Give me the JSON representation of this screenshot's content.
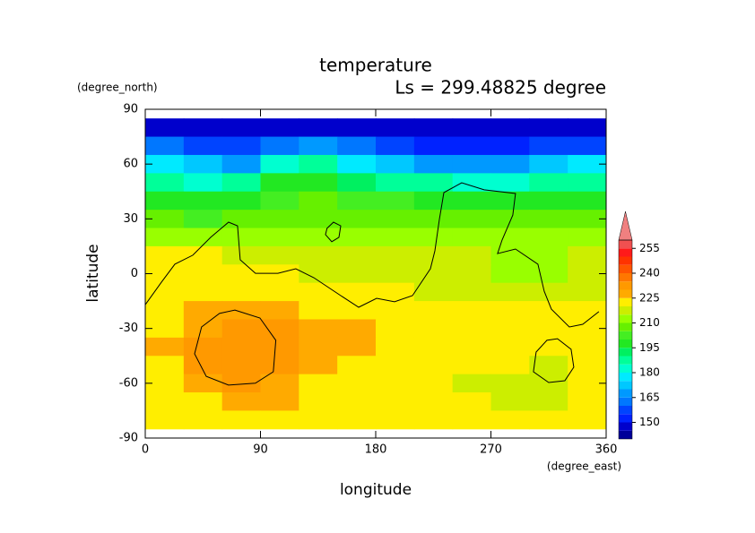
{
  "chart_data": {
    "type": "contour",
    "title": "temperature",
    "subtitle": "Ls = 299.48825 degree",
    "x_label": "longitude",
    "x_unit": "(degree_east)",
    "y_label": "latitude",
    "y_unit": "(degree_north)",
    "xlim": [
      0,
      360
    ],
    "ylim": [
      -90,
      90
    ],
    "xticks": [
      0,
      90,
      180,
      270,
      360
    ],
    "yticks": [
      -90,
      -60,
      -30,
      0,
      30,
      60,
      90
    ],
    "x": [
      15,
      45,
      75,
      105,
      135,
      165,
      195,
      225,
      255,
      285,
      315,
      345
    ],
    "y": [
      80,
      70,
      60,
      50,
      40,
      30,
      20,
      10,
      0,
      -10,
      -20,
      -30,
      -40,
      -50,
      -60,
      -70,
      -80
    ],
    "z": [
      [
        147,
        147,
        147,
        147,
        147,
        147,
        147,
        147,
        147,
        147,
        147,
        147
      ],
      [
        160,
        155,
        158,
        163,
        165,
        160,
        155,
        152,
        152,
        152,
        155,
        158
      ],
      [
        175,
        170,
        168,
        183,
        185,
        178,
        170,
        167,
        167,
        168,
        170,
        175
      ],
      [
        187,
        183,
        185,
        195,
        197,
        192,
        187,
        185,
        183,
        183,
        185,
        187
      ],
      [
        197,
        195,
        198,
        203,
        205,
        203,
        200,
        198,
        197,
        197,
        198,
        198
      ],
      [
        205,
        203,
        205,
        207,
        208,
        207,
        207,
        206,
        205,
        205,
        205,
        205
      ],
      [
        212,
        212,
        210,
        212,
        212,
        213,
        213,
        212,
        212,
        212,
        212,
        212
      ],
      [
        222,
        220,
        218,
        215,
        215,
        216,
        217,
        215,
        215,
        214,
        214,
        216
      ],
      [
        222,
        222,
        222,
        222,
        218,
        217,
        216,
        215,
        215,
        214,
        214,
        217
      ],
      [
        222,
        223,
        223,
        223,
        222,
        222,
        222,
        218,
        216,
        216,
        216,
        218
      ],
      [
        222,
        225,
        228,
        227,
        224,
        223,
        223,
        222,
        220,
        220,
        220,
        222
      ],
      [
        223,
        228,
        230,
        230,
        228,
        225,
        223,
        222,
        222,
        222,
        221,
        223
      ],
      [
        228,
        230,
        231,
        231,
        228,
        226,
        224,
        223,
        222,
        222,
        221,
        223
      ],
      [
        224,
        230,
        231,
        231,
        228,
        224,
        223,
        222,
        222,
        220,
        218,
        222
      ],
      [
        222,
        226,
        230,
        229,
        224,
        222,
        222,
        222,
        218,
        217,
        216,
        220
      ],
      [
        222,
        222,
        228,
        226,
        222,
        222,
        222,
        221,
        220,
        219,
        218,
        221
      ],
      [
        222,
        222,
        222,
        222,
        222,
        222,
        222,
        222,
        222,
        222,
        221,
        222
      ]
    ],
    "levels": [
      140,
      145,
      150,
      155,
      160,
      165,
      170,
      175,
      180,
      185,
      190,
      195,
      200,
      205,
      210,
      215,
      220,
      225,
      230,
      235,
      240,
      245,
      250,
      255,
      260
    ],
    "colors": [
      "#000099",
      "#0000cc",
      "#0022ff",
      "#0044ff",
      "#0077ff",
      "#0099ff",
      "#00c8ff",
      "#00eaff",
      "#00ffd0",
      "#00ff99",
      "#00f060",
      "#22e822",
      "#44ee22",
      "#66f000",
      "#99ff00",
      "#ccee00",
      "#ffee00",
      "#ffaa00",
      "#ff9900",
      "#ff7700",
      "#ff5500",
      "#ff3300",
      "#ff1a1a",
      "#f05050"
    ],
    "extend_color": "#f08080",
    "cbar_ticks": [
      150,
      165,
      180,
      195,
      210,
      225,
      240,
      255
    ],
    "contours": [
      {
        "x": [
          0,
          12.6,
          23.1,
          37.1,
          51.1,
          65.1,
          72.1,
          74.2,
          86.1,
          103.6,
          117.6,
          131.7,
          152.7,
          166.7,
          180.7,
          194.7,
          208.7,
          222.7,
          226.2,
          229.7,
          233.2,
          247.2,
          264.7,
          289.2,
          287.1,
          278.7,
          275.2,
          289.2,
          306.7,
          311.6,
          317.2,
          331.2,
          341.7,
          354.3
        ],
        "y": [
          -17,
          -4.7,
          5.2,
          10.1,
          19.9,
          28.2,
          26.2,
          7.6,
          0.2,
          0.2,
          2.7,
          -2.2,
          -12,
          -18.4,
          -13.5,
          -15.4,
          -12,
          2.7,
          12.5,
          29.7,
          44.4,
          49.8,
          45.9,
          43.9,
          32.1,
          18.4,
          11,
          13.5,
          5.2,
          -9.6,
          -19.4,
          -29.2,
          -27.7,
          -20.8
        ]
      },
      {
        "x": [
          142,
          147,
          152.7,
          151.3,
          145.7,
          140.8
        ],
        "y": [
          24.8,
          28.2,
          26.2,
          19.9,
          17.5,
          21.4
        ],
        "closed": true
      },
      {
        "x": [
          70,
          89.6,
          102,
          100,
          86,
          65,
          47.6,
          38.5,
          44,
          58
        ],
        "y": [
          -19.9,
          -24.3,
          -36.5,
          -53.7,
          -60,
          -61,
          -56.2,
          -43.9,
          -29.2,
          -21.8
        ],
        "closed": true
      },
      {
        "x": [
          322,
          332.6,
          334.7,
          327.7,
          315.1,
          303.2,
          305.3,
          313.7
        ],
        "y": [
          -35.6,
          -41.4,
          -51.2,
          -58.6,
          -59.6,
          -53.7,
          -42.9,
          -36.5
        ],
        "closed": true
      }
    ]
  }
}
